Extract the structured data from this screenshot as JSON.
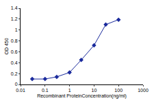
{
  "chart_data": {
    "type": "line",
    "xlabel": "Recombinant ProteinConcentration(ng/ml)",
    "ylabel": "OD 450",
    "x": [
      0.03,
      0.1,
      0.3,
      1,
      3,
      10,
      30,
      100
    ],
    "values": [
      0.1,
      0.1,
      0.14,
      0.22,
      0.45,
      0.72,
      1.1,
      1.19
    ],
    "log": "x",
    "xlim": [
      0.01,
      1000
    ],
    "xticks": [
      0.01,
      0.1,
      1,
      10,
      100,
      1000
    ],
    "ylim": [
      0,
      1.4
    ],
    "yticks": [
      0,
      0.2,
      0.4,
      0.6,
      0.8,
      1,
      1.2,
      1.4
    ],
    "grid": false,
    "color": "#1a2a9c",
    "marker": "diamond",
    "line_style": "solid"
  }
}
